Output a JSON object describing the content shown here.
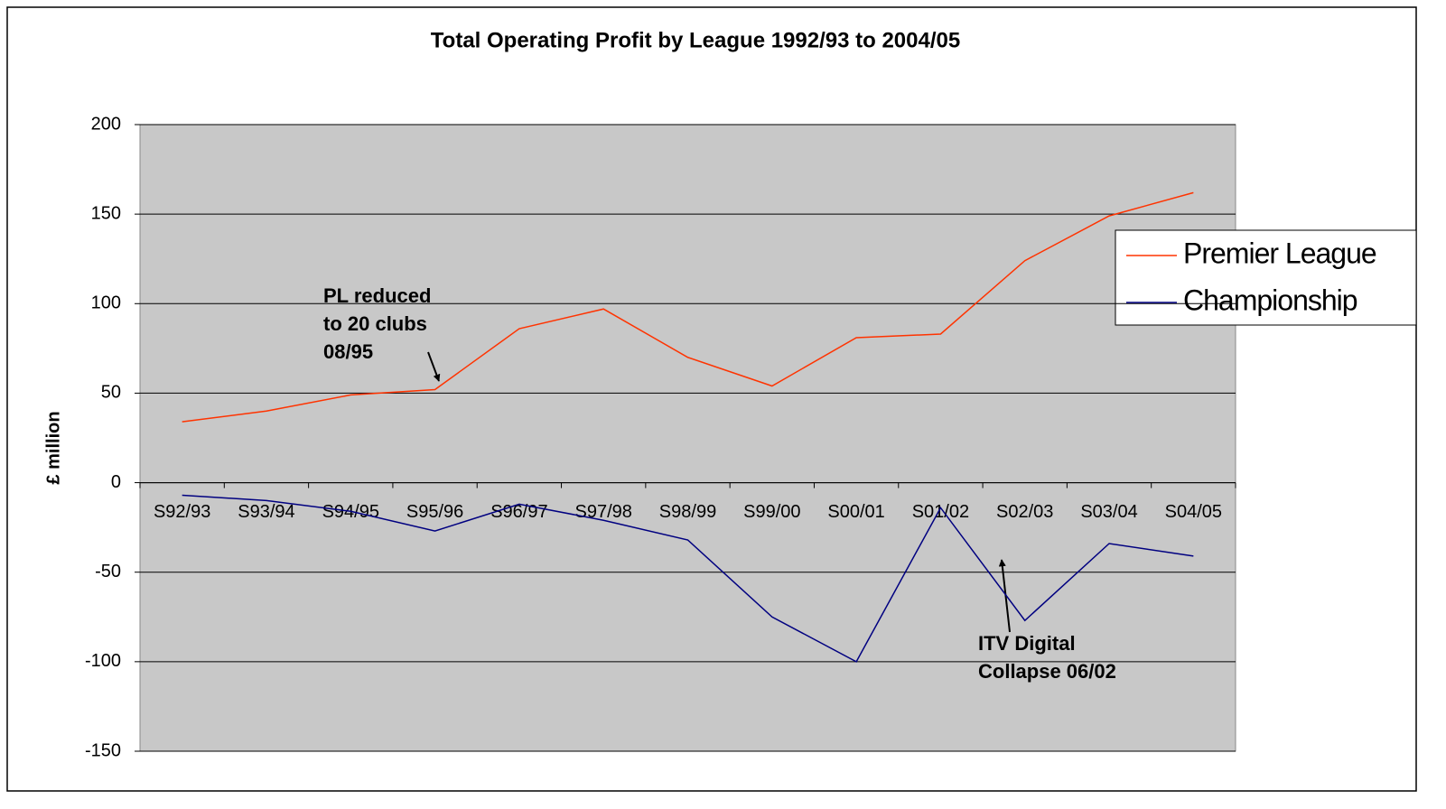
{
  "chart_data": {
    "type": "line",
    "title": "Total Operating Profit by League 1992/93 to 2004/05",
    "y_label": "£ million",
    "categories": [
      "S92/93",
      "S93/94",
      "S94/95",
      "S95/96",
      "S96/97",
      "S97/98",
      "S98/99",
      "S99/00",
      "S00/01",
      "S01/02",
      "S02/03",
      "S03/04",
      "S04/05"
    ],
    "series": [
      {
        "name": "Premier League",
        "color": "#ff3300",
        "values": [
          34,
          40,
          49,
          52,
          86,
          97,
          70,
          54,
          81,
          83,
          124,
          149,
          162
        ]
      },
      {
        "name": "Championship",
        "color": "#000080",
        "values": [
          -7,
          -10,
          -16,
          -27,
          -12,
          -21,
          -32,
          -75,
          -100,
          -14,
          -77,
          -34,
          -41
        ]
      }
    ],
    "ylim": [
      -150,
      200
    ],
    "yticks": [
      -150,
      -100,
      -50,
      0,
      50,
      100,
      150,
      200
    ],
    "grid": true,
    "legend": "right",
    "annotations": [
      {
        "lines": [
          "PL reduced",
          "to 20 clubs",
          "08/95"
        ]
      },
      {
        "lines": [
          "ITV Digital",
          "Collapse 06/02"
        ]
      }
    ]
  }
}
